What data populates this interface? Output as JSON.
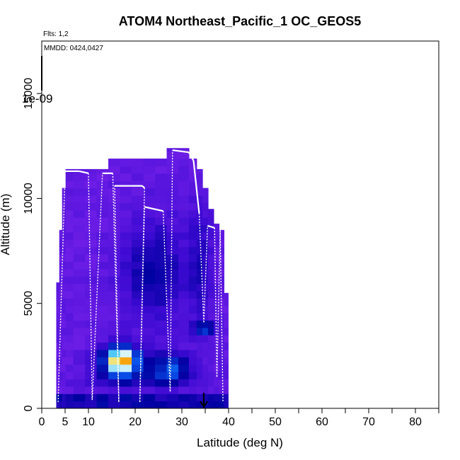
{
  "chart_data": {
    "type": "heatmap",
    "title": "ATOM4 Northeast_Pacific_1 OC_GEOS5",
    "flights_note": "Flts: 1,2",
    "date_note": "MMDD: 0424,0427",
    "scale_label": "1e-09",
    "xlabel": "Latitude (deg N)",
    "ylabel": "Altitude (m)",
    "xlim": [
      0,
      85
    ],
    "ylim": [
      0,
      17500
    ],
    "x_ticks_labeled": [
      0,
      5,
      10,
      20,
      30,
      40,
      50,
      60,
      70,
      80
    ],
    "x_tick_labels": [
      "0",
      "5",
      "10",
      "20",
      "30",
      "40",
      "50",
      "60",
      "70",
      "80"
    ],
    "x_ticks_minor": [
      15,
      25,
      35,
      45,
      55,
      65,
      75,
      85
    ],
    "y_ticks": [
      0,
      5000,
      10000,
      15000
    ],
    "y_tick_labels": [
      "0",
      "5000",
      "10000",
      "15000"
    ],
    "marker_latitude": 34.7,
    "columns": [
      {
        "lat": 3.5,
        "top": 6000
      },
      {
        "lat": 4.0,
        "top": 8500
      },
      {
        "lat": 4.7,
        "top": 10500
      },
      {
        "lat": 5.5,
        "top": 11400
      },
      {
        "lat": 8.0,
        "top": 11400
      },
      {
        "lat": 10.5,
        "top": 11400
      },
      {
        "lat": 13.0,
        "top": 11400
      },
      {
        "lat": 15.5,
        "top": 11900
      },
      {
        "lat": 18.0,
        "top": 11900
      },
      {
        "lat": 20.5,
        "top": 11900
      },
      {
        "lat": 23.0,
        "top": 11900
      },
      {
        "lat": 25.5,
        "top": 11900
      },
      {
        "lat": 28.0,
        "top": 12400
      },
      {
        "lat": 30.5,
        "top": 12400
      },
      {
        "lat": 32.5,
        "top": 11900
      },
      {
        "lat": 33.8,
        "top": 11400
      },
      {
        "lat": 35.0,
        "top": 10500
      },
      {
        "lat": 36.2,
        "top": 9500
      },
      {
        "lat": 37.4,
        "top": 8800
      },
      {
        "lat": 38.5,
        "top": 8500
      },
      {
        "lat": 39.5,
        "top": 5500
      }
    ],
    "flight_track": [
      [
        3.5,
        300
      ],
      [
        5.0,
        11300
      ],
      [
        8.0,
        11300
      ],
      [
        10.0,
        11200
      ],
      [
        10.8,
        400
      ],
      [
        13.0,
        11200
      ],
      [
        15.2,
        11200
      ],
      [
        16.5,
        300
      ],
      [
        15.6,
        10600
      ],
      [
        19.0,
        10600
      ],
      [
        21.5,
        10600
      ],
      [
        22.0,
        10500
      ],
      [
        21.0,
        300
      ],
      [
        22.0,
        9600
      ],
      [
        26.0,
        9400
      ],
      [
        27.5,
        800
      ],
      [
        28.0,
        12300
      ],
      [
        31.5,
        12200
      ],
      [
        32.5,
        11800
      ],
      [
        33.7,
        9300
      ],
      [
        34.7,
        4100
      ],
      [
        35.5,
        8700
      ],
      [
        37.0,
        8600
      ],
      [
        37.5,
        1500
      ],
      [
        38.2,
        8500
      ],
      [
        38.8,
        300
      ]
    ]
  }
}
